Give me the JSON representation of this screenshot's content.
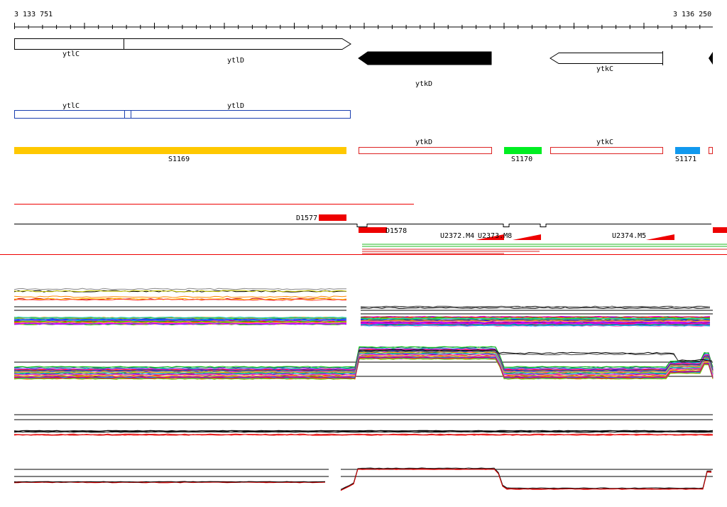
{
  "ruler": {
    "start_label": "3 133 751",
    "end_label": "3 136 250"
  },
  "genes": [
    {
      "name": "ytlC",
      "strand": "+",
      "style": "open"
    },
    {
      "name": "ytlD",
      "strand": "+",
      "style": "open"
    },
    {
      "name": "ytkD",
      "strand": "-",
      "style": "filled"
    },
    {
      "name": "ytkC",
      "strand": "-",
      "style": "open"
    }
  ],
  "cds": [
    {
      "name": "ytlC"
    },
    {
      "name": "ytlD"
    }
  ],
  "segments": [
    {
      "label": "S1169",
      "color": "#ffc800"
    },
    {
      "label": "ytkD",
      "color": "#dd2222",
      "style": "open"
    },
    {
      "label": "S1170",
      "color": "#00ee22"
    },
    {
      "label": "ytkC",
      "color": "#dd2222",
      "style": "open"
    },
    {
      "label": "S1171",
      "color": "#1199ee"
    }
  ],
  "features": [
    {
      "label": "D1577"
    },
    {
      "label": "D1578"
    },
    {
      "label": "U2372.M4"
    },
    {
      "label": "U2373.M8"
    },
    {
      "label": "U2374.M5"
    }
  ],
  "colors": {
    "gene_fill": "#000000",
    "cds_outline": "#1a3fb0",
    "feature_red": "#ee0000",
    "separator": "#ee0000"
  }
}
